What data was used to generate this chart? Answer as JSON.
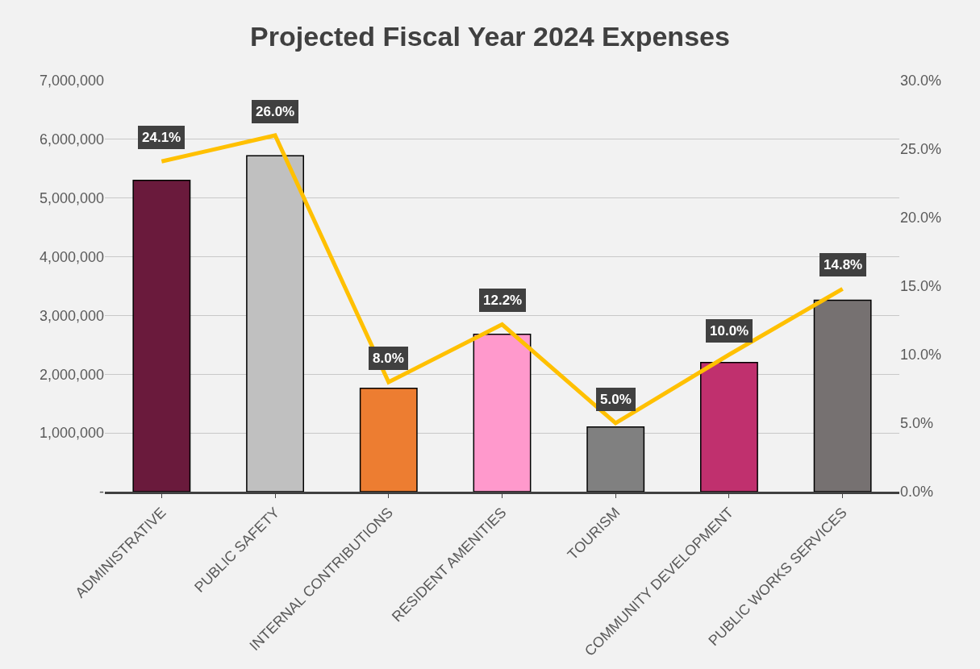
{
  "chart_data": {
    "type": "bar",
    "title": "Projected Fiscal Year 2024 Expenses",
    "categories": [
      "ADMINISTRATIVE",
      "PUBLIC SAFETY",
      "INTERNAL CONTRIBUTIONS",
      "RESIDENT AMENITIES",
      "TOURISM",
      "COMMUNITY DEVELOPMENT",
      "PUBLIC WORKS SERVICES"
    ],
    "series": [
      {
        "colors": [
          "#6a1a3c",
          "#c0c0c0",
          "#ed7d31",
          "#ff99cc",
          "#808080",
          "#c0306e",
          "#767171"
        ],
        "values": [
          5300000,
          5720000,
          1760000,
          2680000,
          1100000,
          2200000,
          3260000
        ]
      },
      {
        "type": "line",
        "axis": "y2",
        "color": "#ffc000",
        "values": [
          24.1,
          26.0,
          8.0,
          12.2,
          5.0,
          10.0,
          14.8
        ],
        "value_labels": [
          "24.1%",
          "26.0%",
          "8.0%",
          "12.2%",
          "5.0%",
          "10.0%",
          "14.8%"
        ]
      }
    ],
    "ylim": [
      0,
      7000000
    ],
    "yticks": [
      {
        "value": 0,
        "label": "-"
      },
      {
        "value": 1000000,
        "label": "1,000,000"
      },
      {
        "value": 2000000,
        "label": "2,000,000"
      },
      {
        "value": 3000000,
        "label": "3,000,000"
      },
      {
        "value": 4000000,
        "label": "4,000,000"
      },
      {
        "value": 5000000,
        "label": "5,000,000"
      },
      {
        "value": 6000000,
        "label": "6,000,000"
      },
      {
        "value": 7000000,
        "label": "7,000,000"
      }
    ],
    "y2lim": [
      0,
      30
    ],
    "y2ticks": [
      {
        "value": 0,
        "label": "0.0%"
      },
      {
        "value": 5,
        "label": "5.0%"
      },
      {
        "value": 10,
        "label": "10.0%"
      },
      {
        "value": 15,
        "label": "15.0%"
      },
      {
        "value": 20,
        "label": "20.0%"
      },
      {
        "value": 25,
        "label": "25.0%"
      },
      {
        "value": 30,
        "label": "30.0%"
      }
    ],
    "grid": "y",
    "marker": "none"
  }
}
